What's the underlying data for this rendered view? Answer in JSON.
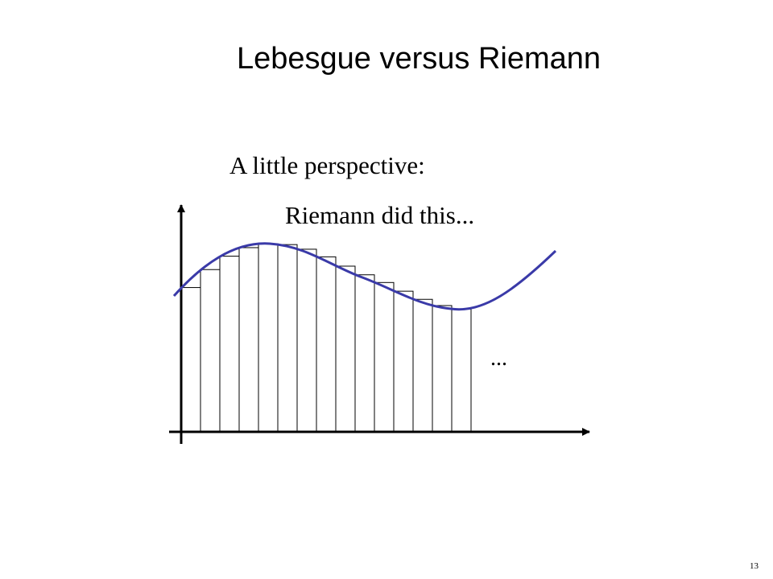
{
  "slide": {
    "title": "Lebesgue versus Riemann",
    "subtitle": "A little perspective:",
    "caption": "Riemann did this...",
    "ellipsis": "...",
    "page_number": "13"
  },
  "colors": {
    "curve": "#3a3aa8",
    "axes": "#000000",
    "rectangles": "#000000"
  }
}
